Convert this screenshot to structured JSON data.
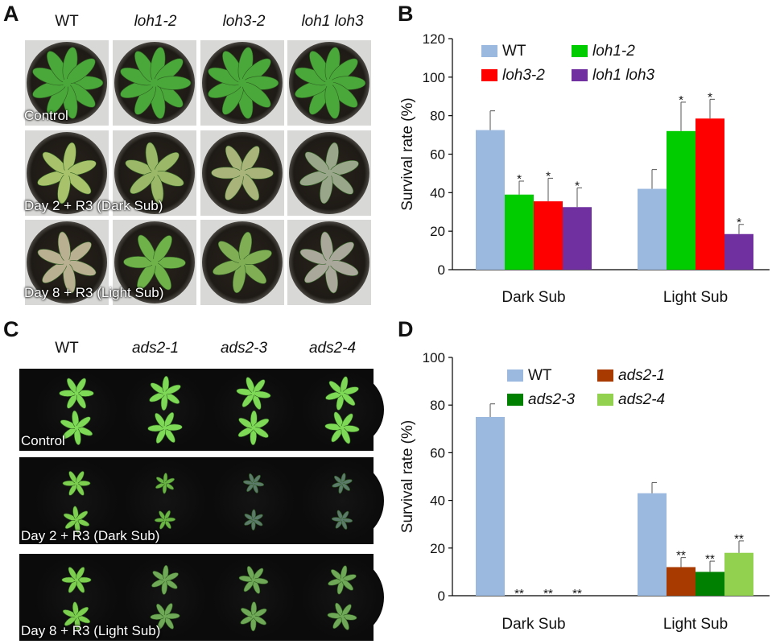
{
  "panels": {
    "A": {
      "letter": "A",
      "columns": [
        "WT",
        "loh1-2",
        "loh3-2",
        "loh1 loh3"
      ],
      "rows": [
        "Control",
        "Day 2 + R3 (Dark Sub)",
        "Day 8 + R3 (Light Sub)"
      ]
    },
    "B": {
      "letter": "B"
    },
    "C": {
      "letter": "C",
      "columns": [
        "WT",
        "ads2-1",
        "ads2-3",
        "ads2-4"
      ],
      "rows": [
        "Control",
        "Day 2 + R3 (Dark Sub)",
        "Day 8 + R3 (Light Sub)"
      ]
    },
    "D": {
      "letter": "D"
    }
  },
  "colors": {
    "wt": "#9bb8de",
    "loh1_2": "#00cc00",
    "loh3_2": "#ff0000",
    "loh1_loh3": "#7030a0",
    "ads2_1": "#a83a00",
    "ads2_3": "#008000",
    "ads2_4": "#92d050"
  },
  "chart_data": [
    {
      "type": "bar",
      "panel": "B",
      "title": "",
      "xlabel": "",
      "ylabel": "Survival rate (%)",
      "ylim": [
        0,
        120
      ],
      "yticks": [
        0,
        20,
        40,
        60,
        80,
        100,
        120
      ],
      "categories": [
        "Dark Sub",
        "Light Sub"
      ],
      "legend_position": "top",
      "series": [
        {
          "name": "WT",
          "values": [
            72.5,
            42
          ],
          "errors": [
            10,
            10
          ],
          "sig": [
            "",
            ""
          ],
          "color": "#9bb8de",
          "italic": false
        },
        {
          "name": "loh1-2",
          "values": [
            39,
            72
          ],
          "errors": [
            7,
            15
          ],
          "sig": [
            "*",
            "*"
          ],
          "color": "#00cc00",
          "italic": true
        },
        {
          "name": "loh3-2",
          "values": [
            35.5,
            78.5
          ],
          "errors": [
            12,
            10
          ],
          "sig": [
            "*",
            "*"
          ],
          "color": "#ff0000",
          "italic": true
        },
        {
          "name": "loh1 loh3",
          "values": [
            32.5,
            18.5
          ],
          "errors": [
            10,
            5
          ],
          "sig": [
            "*",
            "*"
          ],
          "color": "#7030a0",
          "italic": true
        }
      ]
    },
    {
      "type": "bar",
      "panel": "D",
      "title": "",
      "xlabel": "",
      "ylabel": "Survival rate (%)",
      "ylim": [
        0,
        100
      ],
      "yticks": [
        0,
        20,
        40,
        60,
        80,
        100
      ],
      "categories": [
        "Dark Sub",
        "Light Sub"
      ],
      "legend_position": "top",
      "series": [
        {
          "name": "WT",
          "values": [
            75,
            43
          ],
          "errors": [
            5.5,
            4.5
          ],
          "sig": [
            "",
            ""
          ],
          "color": "#9bb8de",
          "italic": false
        },
        {
          "name": "ads2-1",
          "values": [
            0,
            12
          ],
          "errors": [
            0,
            4
          ],
          "sig": [
            "**",
            "**"
          ],
          "color": "#a83a00",
          "italic": true
        },
        {
          "name": "ads2-3",
          "values": [
            0,
            10
          ],
          "errors": [
            0,
            4.5
          ],
          "sig": [
            "**",
            "**"
          ],
          "color": "#008000",
          "italic": true
        },
        {
          "name": "ads2-4",
          "values": [
            0,
            18
          ],
          "errors": [
            0,
            5
          ],
          "sig": [
            "**",
            "**"
          ],
          "color": "#92d050",
          "italic": true
        }
      ]
    }
  ]
}
